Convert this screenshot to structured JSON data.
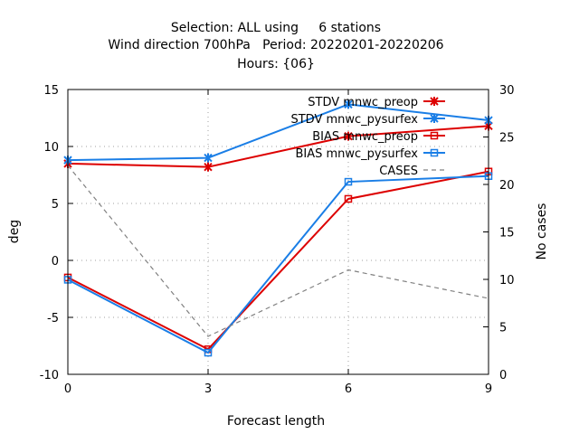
{
  "chart_data": {
    "type": "line",
    "title_lines": [
      "Selection: ALL using     6 stations",
      "Wind direction 700hPa   Period: 20220201-20220206",
      "Hours: {06}"
    ],
    "xlabel": "Forecast length",
    "ylabel": "deg",
    "y2label": "No cases",
    "x_ticks": [
      "0",
      "3",
      "6",
      "9"
    ],
    "y_ticks": [
      "-10",
      "-5",
      "0",
      "5",
      "10",
      "15"
    ],
    "y2_ticks": [
      "0",
      "5",
      "10",
      "15",
      "20",
      "25",
      "30"
    ],
    "xlim": [
      0,
      9
    ],
    "ylim": [
      -10,
      15
    ],
    "y2lim": [
      0,
      30
    ],
    "grid": true,
    "legend_position": "top-right",
    "series": [
      {
        "name": "STDV mnwc_preop",
        "axis": "y",
        "marker": "star",
        "dashed": false,
        "color": "#dd0000",
        "x": [
          0,
          3,
          6,
          9
        ],
        "values": [
          8.5,
          8.2,
          10.9,
          11.8
        ]
      },
      {
        "name": "STDV mnwc_pysurfex",
        "axis": "y",
        "marker": "star",
        "dashed": false,
        "color": "#1a7ee6",
        "x": [
          0,
          3,
          6,
          9
        ],
        "values": [
          8.8,
          9.0,
          13.7,
          12.3
        ]
      },
      {
        "name": "BIAS mnwc_preop",
        "axis": "y",
        "marker": "square",
        "dashed": false,
        "color": "#dd0000",
        "x": [
          0,
          3,
          6,
          9
        ],
        "values": [
          -1.5,
          -7.8,
          5.4,
          7.8
        ]
      },
      {
        "name": "BIAS mnwc_pysurfex",
        "axis": "y",
        "marker": "square",
        "dashed": false,
        "color": "#1a7ee6",
        "x": [
          0,
          3,
          6,
          9
        ],
        "values": [
          -1.7,
          -8.1,
          6.9,
          7.4
        ]
      },
      {
        "name": "CASES",
        "axis": "y2",
        "marker": "none",
        "dashed": true,
        "color": "#808080",
        "x": [
          0,
          3,
          6,
          9
        ],
        "values": [
          22,
          4,
          11,
          8
        ]
      }
    ]
  }
}
